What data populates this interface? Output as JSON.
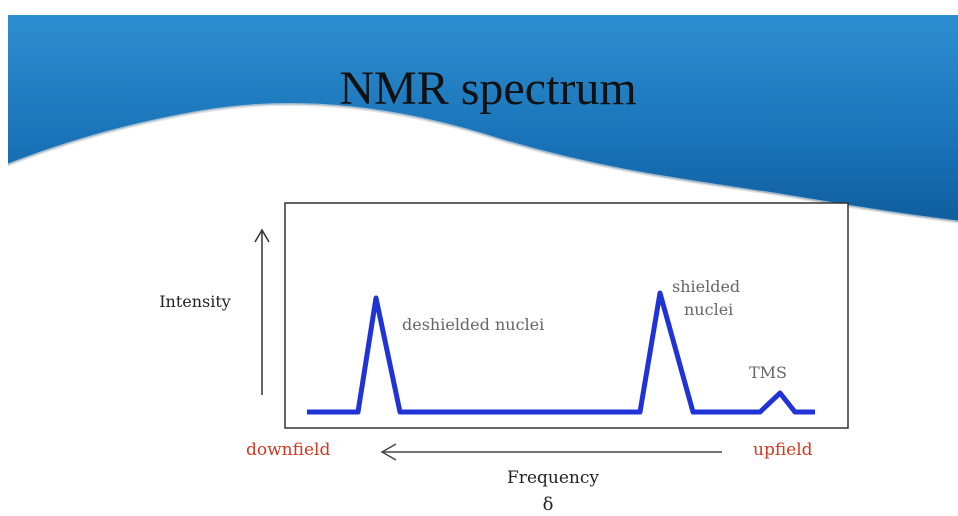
{
  "title": "NMR spectrum",
  "axes": {
    "y_label": "Intensity",
    "x_label": "Frequency",
    "x_symbol": "δ",
    "left_label": "downfield",
    "right_label": "upfield"
  },
  "annotations": {
    "deshielded": "deshielded nuclei",
    "shielded": [
      "shielded",
      "nuclei"
    ],
    "tms": "TMS"
  }
}
